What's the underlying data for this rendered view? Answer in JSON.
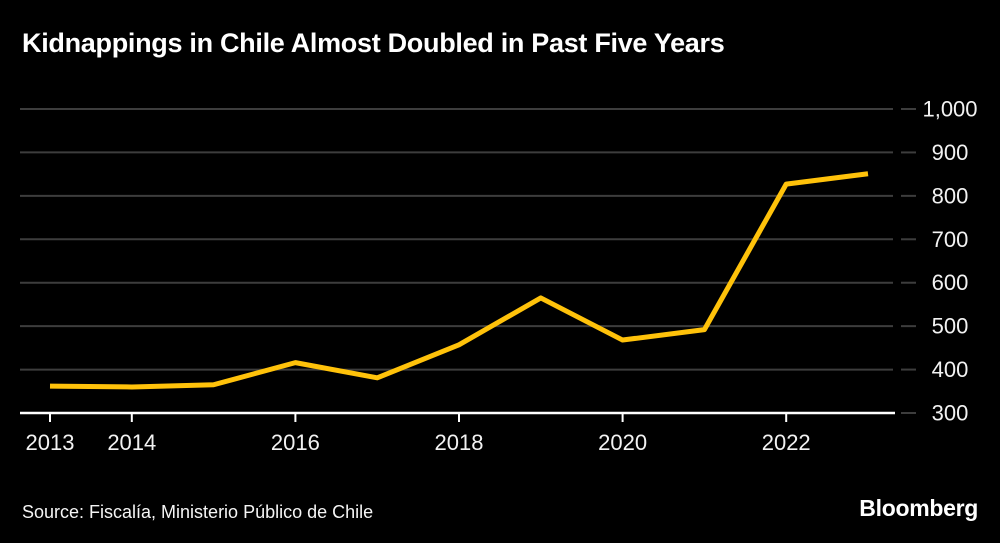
{
  "header": {
    "title": "Kidnappings in Chile Almost Doubled in Past Five Years"
  },
  "footer": {
    "source": "Source: Fiscalía, Ministerio Público de Chile",
    "brand": "Bloomberg"
  },
  "colors": {
    "background": "#000000",
    "line": "#ffc20a",
    "grid": "#3d3d3d",
    "axis": "#ffffff",
    "text": "#f2f2f2"
  },
  "chart_data": {
    "type": "line",
    "title": "Kidnappings in Chile Almost Doubled in Past Five Years",
    "xlabel": "",
    "ylabel": "",
    "x": [
      2013,
      2014,
      2015,
      2016,
      2017,
      2018,
      2019,
      2020,
      2021,
      2022,
      2023
    ],
    "series": [
      {
        "name": "Kidnappings",
        "values": [
          362,
          360,
          365,
          416,
          381,
          457,
          565,
          468,
          492,
          827,
          851
        ]
      }
    ],
    "ylim": [
      300,
      1000
    ],
    "yticks": [
      300,
      400,
      500,
      600,
      700,
      800,
      900,
      1000
    ],
    "ytick_labels": [
      "300",
      "400",
      "500",
      "600",
      "700",
      "800",
      "900",
      "1,000"
    ],
    "xticks": [
      2013,
      2014,
      2016,
      2018,
      2020,
      2022
    ],
    "xtick_labels": [
      "2013",
      "2014",
      "2016",
      "2018",
      "2020",
      "2022"
    ],
    "grid": true,
    "legend": false,
    "y_axis_side": "right"
  }
}
